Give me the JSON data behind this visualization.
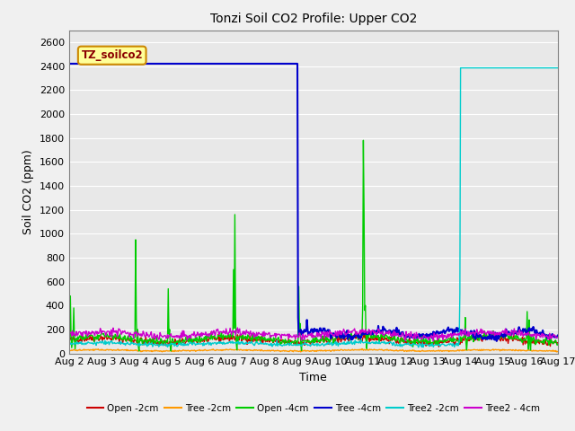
{
  "title": "Tonzi Soil CO2 Profile: Upper CO2",
  "xlabel": "Time",
  "ylabel": "Soil CO2 (ppm)",
  "ylim": [
    0,
    2700
  ],
  "yticks": [
    0,
    200,
    400,
    600,
    800,
    1000,
    1200,
    1400,
    1600,
    1800,
    2000,
    2200,
    2400,
    2600
  ],
  "xlim": [
    2,
    17
  ],
  "x_labels": [
    "Aug 2",
    "Aug 3",
    "Aug 4",
    "Aug 5",
    "Aug 6",
    "Aug 7",
    "Aug 8",
    "Aug 9",
    "Aug 10",
    "Aug 11",
    "Aug 12",
    "Aug 13",
    "Aug 14",
    "Aug 15",
    "Aug 16",
    "Aug 17"
  ],
  "legend_label": "TZ_soilco2",
  "legend_bg": "#ffff99",
  "legend_border": "#cc8800",
  "plot_bg": "#e8e8e8",
  "fig_bg": "#f0f0f0",
  "grid_color": "#ffffff",
  "series": [
    {
      "name": "Open -2cm",
      "color": "#cc0000",
      "lw": 1.0
    },
    {
      "name": "Tree -2cm",
      "color": "#ff9900",
      "lw": 1.0
    },
    {
      "name": "Open -4cm",
      "color": "#00cc00",
      "lw": 1.0
    },
    {
      "name": "Tree -4cm",
      "color": "#0000cc",
      "lw": 1.5
    },
    {
      "name": "Tree2 -2cm",
      "color": "#00cccc",
      "lw": 1.0
    },
    {
      "name": "Tree2 - 4cm",
      "color": "#cc00cc",
      "lw": 1.0
    }
  ]
}
